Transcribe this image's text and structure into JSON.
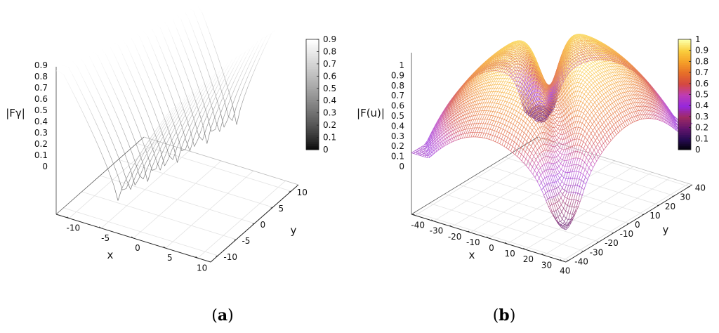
{
  "chart_data": [
    {
      "type": "surface",
      "panel_label": "a",
      "zlabel": "|Fγ|",
      "xlabel": "x",
      "ylabel": "y",
      "xticks": [
        -10,
        -5,
        0,
        5,
        10
      ],
      "yticks": [
        -10,
        -5,
        0,
        5,
        10
      ],
      "xlim": [
        -12,
        12
      ],
      "ylim": [
        -12,
        12
      ],
      "zticks": [
        "0.9",
        "0.8",
        "0.7",
        "0.6",
        "0.5",
        "0.4",
        "0.3",
        "0.2",
        "0.1",
        "0"
      ],
      "zlim": [
        0,
        0.9
      ],
      "colorbar": {
        "palette": "grayscale",
        "ticks": [
          "0.9",
          "0.8",
          "0.7",
          "0.6",
          "0.5",
          "0.4",
          "0.3",
          "0.2",
          "0.1",
          "0"
        ],
        "range": [
          0,
          0.9
        ]
      },
      "surface": {
        "shape": "valley",
        "min_value": 0.2,
        "max_value": 0.9,
        "grid_lines": 20
      }
    },
    {
      "type": "surface",
      "panel_label": "b",
      "zlabel": "|F(u)|",
      "xlabel": "x",
      "ylabel": "y",
      "xticks": [
        -40,
        -30,
        -20,
        -10,
        0,
        10,
        20,
        30,
        40
      ],
      "yticks": [
        -40,
        -30,
        -20,
        -10,
        0,
        10,
        20,
        30,
        40
      ],
      "xlim": [
        -42,
        42
      ],
      "ylim": [
        -42,
        42
      ],
      "zticks": [
        "1",
        "0.9",
        "0.8",
        "0.7",
        "0.6",
        "0.5",
        "0.4",
        "0.3",
        "0.2",
        "0.1",
        "0"
      ],
      "zlim": [
        0,
        1
      ],
      "colorbar": {
        "palette": "inferno-like",
        "ticks": [
          "1",
          "0.9",
          "0.8",
          "0.7",
          "0.6",
          "0.5",
          "0.4",
          "0.3",
          "0.2",
          "0.1",
          "0"
        ],
        "range": [
          0,
          1
        ]
      },
      "surface": {
        "shape": "dome-with-ridge",
        "min_value": 0.2,
        "max_value": 1.0,
        "grid_lines": 70
      }
    }
  ]
}
